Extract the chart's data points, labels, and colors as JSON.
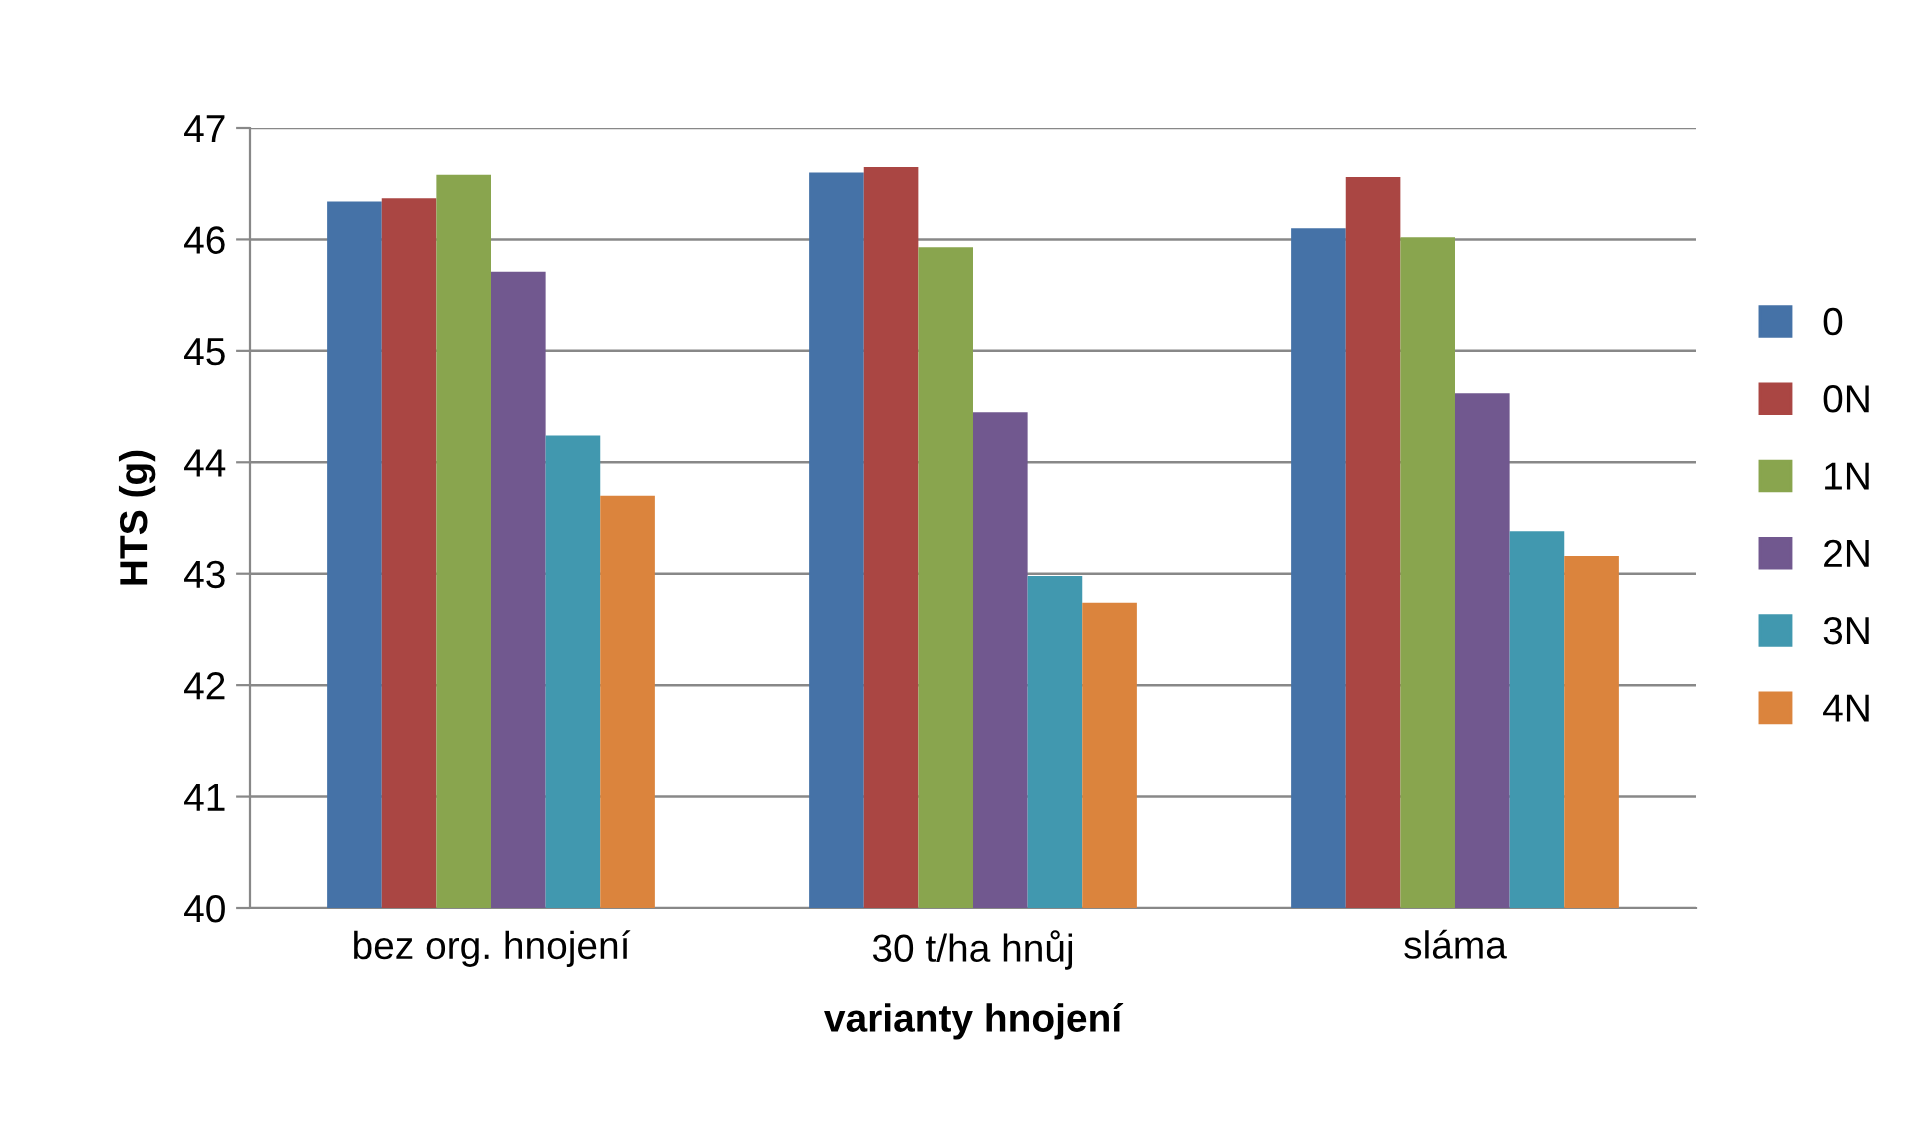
{
  "chart_data": {
    "type": "bar",
    "xlabel": "varianty hnojení",
    "ylabel": "HTS (g)",
    "categories": [
      "bez org. hnojení",
      "30 t/ha hnůj",
      "sláma"
    ],
    "series": [
      {
        "name": "0",
        "color": "#4572a7",
        "values": [
          46.34,
          46.6,
          46.1
        ]
      },
      {
        "name": "0N",
        "color": "#aa4643",
        "values": [
          46.37,
          46.65,
          46.56
        ]
      },
      {
        "name": "1N",
        "color": "#89a54e",
        "values": [
          46.58,
          45.93,
          46.02
        ]
      },
      {
        "name": "2N",
        "color": "#71588f",
        "values": [
          45.71,
          44.45,
          44.62
        ]
      },
      {
        "name": "3N",
        "color": "#4198af",
        "values": [
          44.24,
          42.98,
          43.38
        ]
      },
      {
        "name": "4N",
        "color": "#db843d",
        "values": [
          43.7,
          42.74,
          43.16
        ]
      }
    ],
    "ylim": [
      40,
      47
    ],
    "yticks": [
      40,
      41,
      42,
      43,
      44,
      45,
      46,
      47
    ],
    "grid": "y",
    "legend": "right"
  }
}
